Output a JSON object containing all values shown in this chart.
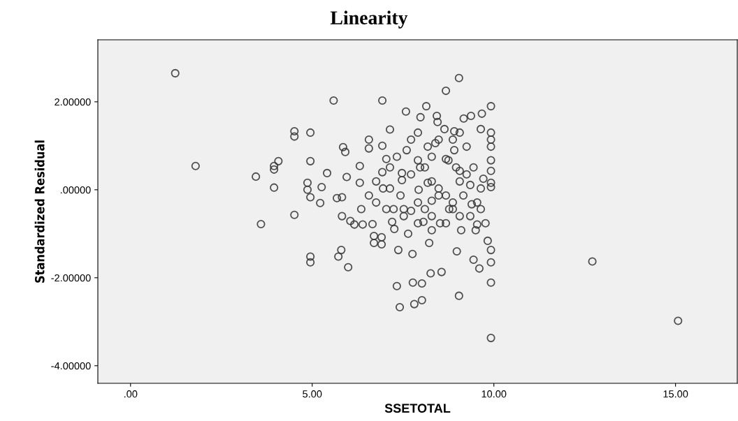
{
  "chart_data": {
    "type": "scatter",
    "title": "Linearity",
    "xlabel": "SSETOTAL",
    "ylabel": "Standardized Residual",
    "xlim": [
      -0.9,
      16.7
    ],
    "ylim": [
      -4.4,
      3.41
    ],
    "xticks": [
      {
        "value": 0,
        "label": ".00"
      },
      {
        "value": 5,
        "label": "5.00"
      },
      {
        "value": 10,
        "label": "10.00"
      },
      {
        "value": 15,
        "label": "15.00"
      }
    ],
    "yticks": [
      {
        "value": -4,
        "label": "-4.00000"
      },
      {
        "value": -2,
        "label": "-2.00000"
      },
      {
        "value": 0,
        "label": ".00000"
      },
      {
        "value": 2,
        "label": "2.00000"
      }
    ],
    "grid": false,
    "legend": false,
    "marker": "circle",
    "series": [
      {
        "color": "#333333",
        "x": [
          1.23,
          1.79,
          3.45,
          3.59,
          3.95,
          3.95,
          3.95,
          4.07,
          4.51,
          4.51,
          4.51,
          4.95,
          4.95,
          4.87,
          4.87,
          4.95,
          4.95,
          4.95,
          5.22,
          5.26,
          5.41,
          5.59,
          5.68,
          5.72,
          5.8,
          5.82,
          5.82,
          5.85,
          5.91,
          5.95,
          5.99,
          6.05,
          6.16,
          6.31,
          6.31,
          6.35,
          6.39,
          6.56,
          6.56,
          6.56,
          6.66,
          6.7,
          6.7,
          6.93,
          6.93,
          6.93,
          6.91,
          6.91,
          7.04,
          7.04,
          7.14,
          7.2,
          7.26,
          7.33,
          7.37,
          7.41,
          7.47,
          7.47,
          7.6,
          7.58,
          7.64,
          7.72,
          7.76,
          7.77,
          7.81,
          7.93,
          7.97,
          7.98,
          8.02,
          8.02,
          8.06,
          8.14,
          8.18,
          8.18,
          8.22,
          8.26,
          8.29,
          8.39,
          8.43,
          8.45,
          8.52,
          8.56,
          8.68,
          8.64,
          8.68,
          8.75,
          8.87,
          8.91,
          8.91,
          8.98,
          9.04,
          9.04,
          9.06,
          9.1,
          9.17,
          9.25,
          9.37,
          9.39,
          9.44,
          9.5,
          9.54,
          9.6,
          9.64,
          9.67,
          9.71,
          9.77,
          9.83,
          9.92,
          9.92,
          9.92,
          9.92,
          9.92,
          9.92,
          9.92,
          9.92,
          9.92,
          9.92,
          9.92,
          9.92,
          12.71,
          15.07,
          6.76,
          7.14,
          7.43,
          7.52,
          7.72,
          7.91,
          8.1,
          8.29,
          8.48,
          8.68,
          8.87,
          9.06,
          9.25,
          9.44,
          9.64,
          7.91,
          8.1,
          8.29,
          8.48,
          8.77,
          8.96,
          9.16,
          9.35,
          9.54,
          7.14,
          7.33,
          7.72,
          7.91,
          8.29,
          8.48,
          8.87,
          9.06,
          6.76,
          6.95,
          7.24,
          7.52,
          7.91,
          8.29,
          8.68,
          9.06,
          9.35,
          9.64
        ],
        "values": [
          2.65,
          0.54,
          0.3,
          -0.78,
          0.05,
          0.46,
          0.54,
          0.65,
          1.33,
          1.21,
          -0.57,
          1.3,
          0.65,
          0.16,
          0.0,
          -0.17,
          -1.52,
          -1.65,
          -0.3,
          0.06,
          0.38,
          2.03,
          -0.19,
          -1.52,
          -1.37,
          -0.6,
          -0.17,
          0.97,
          0.86,
          0.29,
          -1.76,
          -0.71,
          -0.79,
          0.54,
          0.16,
          -0.44,
          -0.79,
          -0.13,
          1.14,
          0.94,
          -0.78,
          -1.05,
          -1.21,
          2.03,
          1.0,
          0.4,
          -1.08,
          -1.24,
          0.7,
          -0.44,
          1.37,
          -0.73,
          -0.89,
          -2.19,
          -1.37,
          -2.67,
          0.22,
          0.38,
          0.9,
          1.78,
          -1.0,
          -0.48,
          -1.46,
          -2.11,
          -2.6,
          0.0,
          0.51,
          1.65,
          -2.13,
          -2.51,
          -0.73,
          1.9,
          0.16,
          0.98,
          -1.21,
          -1.9,
          -0.25,
          1.06,
          1.68,
          1.54,
          -0.76,
          -1.87,
          2.25,
          1.38,
          0.7,
          0.67,
          -0.44,
          0.9,
          1.33,
          -1.4,
          2.54,
          -2.41,
          0.43,
          -0.92,
          1.62,
          0.98,
          1.68,
          -0.33,
          -1.59,
          -0.92,
          -0.79,
          -1.79,
          1.38,
          1.73,
          0.25,
          -0.76,
          -1.16,
          1.9,
          1.3,
          1.14,
          0.98,
          0.67,
          0.43,
          0.16,
          0.06,
          -1.37,
          -1.65,
          -2.11,
          -3.37,
          -1.63,
          -2.98,
          -0.29,
          0.03,
          -0.13,
          -0.44,
          0.35,
          0.67,
          0.51,
          0.19,
          0.03,
          -0.13,
          -0.29,
          0.19,
          0.35,
          0.51,
          0.03,
          -0.29,
          -0.44,
          -0.6,
          -0.13,
          -0.44,
          0.51,
          -0.13,
          0.11,
          -0.29,
          0.51,
          0.75,
          1.14,
          1.3,
          0.75,
          1.14,
          1.14,
          1.3,
          0.19,
          0.03,
          -0.44,
          -0.6,
          -0.76,
          -0.92,
          -0.76,
          -0.6,
          -0.6,
          -0.44
        ]
      }
    ]
  }
}
